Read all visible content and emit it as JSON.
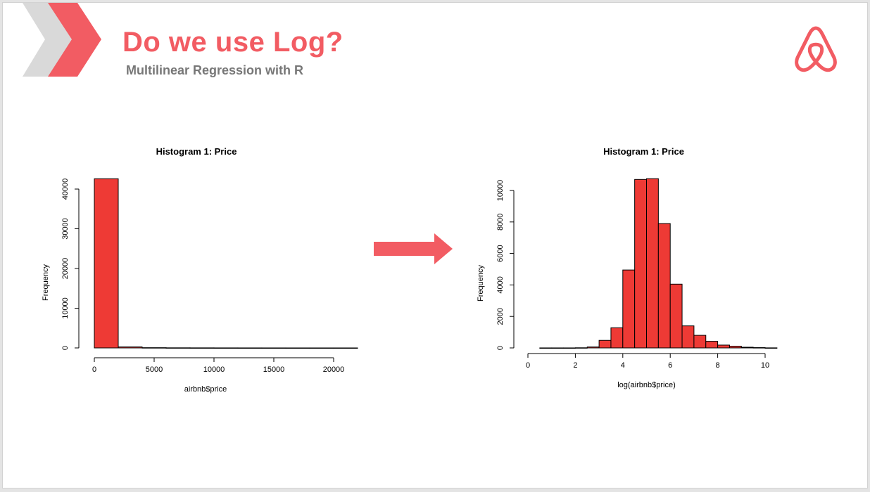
{
  "slide": {
    "title": "Do we use Log?",
    "subtitle": "Multilinear Regression with R"
  },
  "colors": {
    "accent": "#f25c63",
    "bar_fill": "#ee3a35",
    "chevron_gray": "#d9d9d9"
  },
  "icons": {
    "logo": "airbnb-logo-icon",
    "decoration": "chevron-icon",
    "transition": "arrow-right-icon"
  },
  "chart_data": [
    {
      "type": "bar",
      "title": "Histogram 1: Price",
      "xlabel": "airbnb$price",
      "ylabel": "Frequency",
      "xlim": [
        0,
        20000
      ],
      "ylim": [
        0,
        40000
      ],
      "xticks": [
        0,
        5000,
        10000,
        15000,
        20000
      ],
      "yticks": [
        0,
        10000,
        20000,
        30000,
        40000
      ],
      "bin_width": 2000,
      "bins": [
        {
          "x0": 0,
          "x1": 2000,
          "count": 42600
        },
        {
          "x0": 2000,
          "x1": 4000,
          "count": 250
        },
        {
          "x0": 4000,
          "x1": 6000,
          "count": 60
        },
        {
          "x0": 6000,
          "x1": 8000,
          "count": 30
        },
        {
          "x0": 8000,
          "x1": 10000,
          "count": 20
        },
        {
          "x0": 10000,
          "x1": 12000,
          "count": 12
        },
        {
          "x0": 12000,
          "x1": 14000,
          "count": 8
        },
        {
          "x0": 14000,
          "x1": 16000,
          "count": 5
        },
        {
          "x0": 16000,
          "x1": 18000,
          "count": 3
        },
        {
          "x0": 18000,
          "x1": 20000,
          "count": 2
        },
        {
          "x0": 20000,
          "x1": 22000,
          "count": 2
        }
      ]
    },
    {
      "type": "bar",
      "title": "Histogram 1: Price",
      "xlabel": "log(airbnb$price)",
      "ylabel": "Frequency",
      "xlim": [
        0,
        10
      ],
      "ylim": [
        0,
        10000
      ],
      "xticks": [
        0,
        2,
        4,
        6,
        8,
        10
      ],
      "yticks": [
        0,
        2000,
        4000,
        6000,
        8000,
        10000
      ],
      "bin_width": 0.5,
      "bins": [
        {
          "x0": 0.5,
          "x1": 1.0,
          "count": 2
        },
        {
          "x0": 1.0,
          "x1": 1.5,
          "count": 2
        },
        {
          "x0": 1.5,
          "x1": 2.0,
          "count": 2
        },
        {
          "x0": 2.0,
          "x1": 2.5,
          "count": 10
        },
        {
          "x0": 2.5,
          "x1": 3.0,
          "count": 60
        },
        {
          "x0": 3.0,
          "x1": 3.5,
          "count": 480
        },
        {
          "x0": 3.5,
          "x1": 4.0,
          "count": 1280
        },
        {
          "x0": 4.0,
          "x1": 4.5,
          "count": 4950
        },
        {
          "x0": 4.5,
          "x1": 5.0,
          "count": 10700
        },
        {
          "x0": 5.0,
          "x1": 5.5,
          "count": 10750
        },
        {
          "x0": 5.5,
          "x1": 6.0,
          "count": 7900
        },
        {
          "x0": 6.0,
          "x1": 6.5,
          "count": 4050
        },
        {
          "x0": 6.5,
          "x1": 7.0,
          "count": 1400
        },
        {
          "x0": 7.0,
          "x1": 7.5,
          "count": 800
        },
        {
          "x0": 7.5,
          "x1": 8.0,
          "count": 420
        },
        {
          "x0": 8.0,
          "x1": 8.5,
          "count": 180
        },
        {
          "x0": 8.5,
          "x1": 9.0,
          "count": 110
        },
        {
          "x0": 9.0,
          "x1": 9.5,
          "count": 45
        },
        {
          "x0": 9.5,
          "x1": 10.0,
          "count": 20
        },
        {
          "x0": 10.0,
          "x1": 10.5,
          "count": 5
        }
      ]
    }
  ]
}
